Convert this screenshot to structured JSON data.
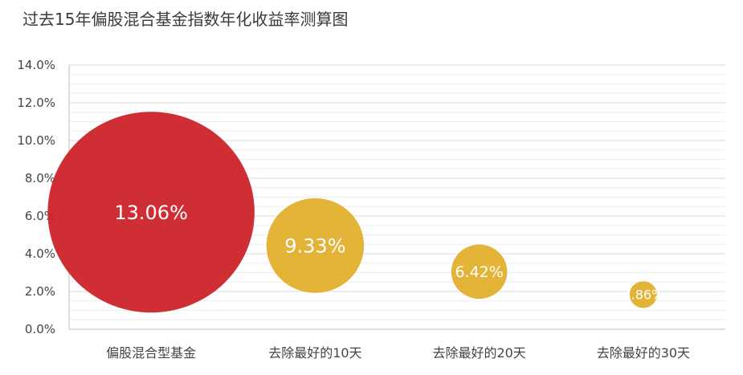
{
  "chart_data": {
    "type": "bubble",
    "title": "过去15年偏股混合基金指数年化收益率测算图",
    "xlabel": "",
    "ylabel": "",
    "categories": [
      "偏股混合型基金",
      "去除最好的10天",
      "去除最好的20天",
      "去除最好的30天"
    ],
    "values": [
      13.06,
      9.33,
      6.42,
      3.86
    ],
    "data_labels": [
      "13.06%",
      "9.33%",
      "6.42%",
      "3.86%"
    ],
    "colors": [
      "#cc2329",
      "#e0ac22",
      "#e0ac22",
      "#e0ac22"
    ],
    "ylim": [
      0,
      14
    ],
    "yticks": [
      0,
      2,
      4,
      6,
      8,
      10,
      12,
      14
    ],
    "ytick_labels": [
      "0.0%",
      "2.0%",
      "4.0%",
      "6.0%",
      "8.0%",
      "10.0%",
      "12.0%",
      "14.0%"
    ],
    "grid": true,
    "legend": "none"
  }
}
